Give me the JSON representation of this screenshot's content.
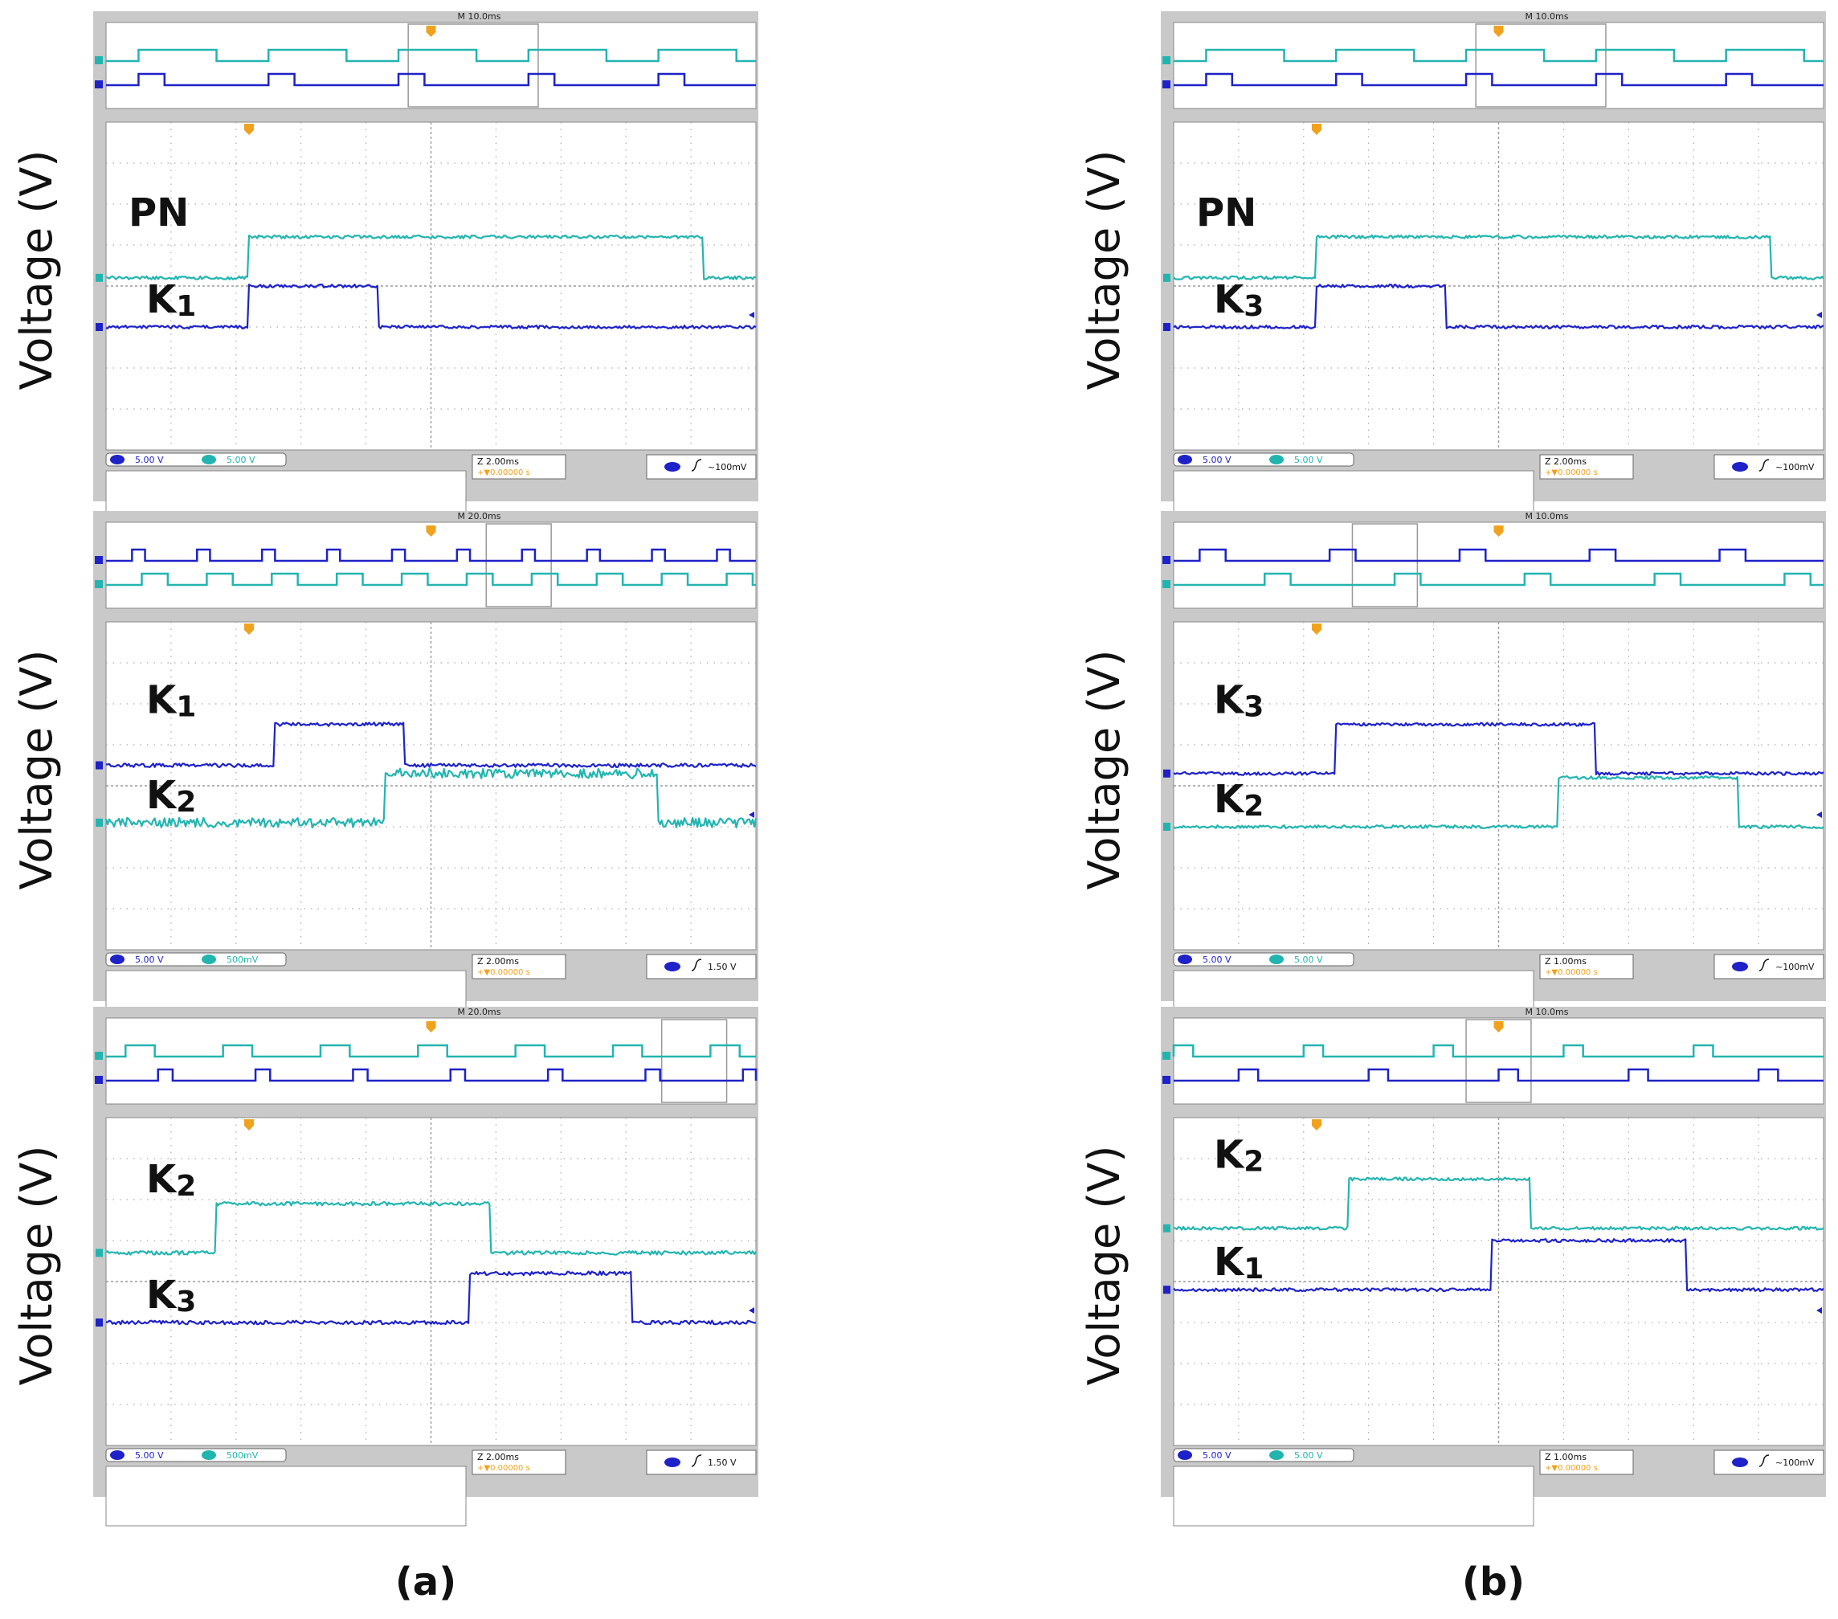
{
  "colors": {
    "ch1": "#1e22c8",
    "ch2": "#22b5b0",
    "trigger": "#f0a21e",
    "scope_bg": "#c9c9c9",
    "grid": "#9a9a9a"
  },
  "ylabel": "Voltage (V)",
  "panel_labels": [
    "(a)",
    "(b)"
  ],
  "chart_data": [
    {
      "type": "line",
      "column": "a",
      "row": 0,
      "overview": {
        "timebase": "M 10.0ms",
        "order": [
          "ch2",
          "ch1"
        ],
        "ch1_period_div": 2.0,
        "ch1_duty": 0.2,
        "ch1_phase": 0.5,
        "ch2_period_div": 2.0,
        "ch2_duty": 0.6,
        "ch2_phase": 0.5,
        "window": [
          4.65,
          6.65
        ]
      },
      "series": [
        {
          "name": "PN",
          "label_main": "PN",
          "label_sub": "",
          "channel": "ch2",
          "level_div": 4.2,
          "step_div": 1.0,
          "high_intervals": [
            [
              2.2,
              9.2
            ]
          ],
          "noise": 0.025
        },
        {
          "name": "K1",
          "label_main": "K",
          "label_sub": "1",
          "channel": "ch1",
          "level_div": 3.0,
          "step_div": 1.0,
          "high_intervals": [
            [
              2.2,
              4.2
            ]
          ],
          "noise": 0.025
        }
      ],
      "readouts": {
        "ch1": "5.00 V",
        "ch2": "5.00 V",
        "timescale": "2.00ms",
        "position": "+▼0.00000 s",
        "trigger": "~100mV"
      }
    },
    {
      "type": "line",
      "column": "a",
      "row": 1,
      "overview": {
        "timebase": "M 20.0ms",
        "order": [
          "ch1",
          "ch2"
        ],
        "ch1_period_div": 1.0,
        "ch1_duty": 0.2,
        "ch1_phase": 0.4,
        "ch2_period_div": 1.0,
        "ch2_duty": 0.4,
        "ch2_phase": 0.55,
        "window": [
          5.85,
          6.85
        ]
      },
      "series": [
        {
          "name": "K1",
          "label_main": "K",
          "label_sub": "1",
          "channel": "ch1",
          "level_div": 4.5,
          "step_div": 1.0,
          "high_intervals": [
            [
              2.6,
              4.6
            ]
          ],
          "noise": 0.03
        },
        {
          "name": "K2",
          "label_main": "K",
          "label_sub": "2",
          "channel": "ch2",
          "level_div": 3.1,
          "step_div": 1.2,
          "high_intervals": [
            [
              4.3,
              8.5
            ]
          ],
          "noise": 0.08
        }
      ],
      "readouts": {
        "ch1": "5.00 V",
        "ch2": "500mV",
        "timescale": "2.00ms",
        "position": "+▼0.00000 s",
        "trigger": "1.50 V"
      }
    },
    {
      "type": "line",
      "column": "a",
      "row": 2,
      "overview": {
        "timebase": "M 20.0ms",
        "order": [
          "ch2",
          "ch1"
        ],
        "ch1_period_div": 1.5,
        "ch1_duty": 0.15,
        "ch1_phase": 0.8,
        "ch2_period_div": 1.5,
        "ch2_duty": 0.3,
        "ch2_phase": 0.3,
        "window": [
          8.55,
          9.55
        ]
      },
      "series": [
        {
          "name": "K2",
          "label_main": "K",
          "label_sub": "2",
          "channel": "ch2",
          "level_div": 4.7,
          "step_div": 1.2,
          "high_intervals": [
            [
              1.7,
              5.9
            ]
          ],
          "noise": 0.03
        },
        {
          "name": "K3",
          "label_main": "K",
          "label_sub": "3",
          "channel": "ch1",
          "level_div": 3.0,
          "step_div": 1.2,
          "high_intervals": [
            [
              5.6,
              8.1
            ]
          ],
          "noise": 0.03
        }
      ],
      "readouts": {
        "ch1": "5.00 V",
        "ch2": "500mV",
        "timescale": "2.00ms",
        "position": "+▼0.00000 s",
        "trigger": "1.50 V"
      }
    },
    {
      "type": "line",
      "column": "b",
      "row": 0,
      "overview": {
        "timebase": "M 10.0ms",
        "order": [
          "ch2",
          "ch1"
        ],
        "ch1_period_div": 2.0,
        "ch1_duty": 0.2,
        "ch1_phase": 0.5,
        "ch2_period_div": 2.0,
        "ch2_duty": 0.6,
        "ch2_phase": 0.5,
        "window": [
          4.65,
          6.65
        ]
      },
      "series": [
        {
          "name": "PN",
          "label_main": "PN",
          "label_sub": "",
          "channel": "ch2",
          "level_div": 4.2,
          "step_div": 1.0,
          "high_intervals": [
            [
              2.2,
              9.2
            ]
          ],
          "noise": 0.025
        },
        {
          "name": "K3",
          "label_main": "K",
          "label_sub": "3",
          "channel": "ch1",
          "level_div": 3.0,
          "step_div": 1.0,
          "high_intervals": [
            [
              2.2,
              4.2
            ]
          ],
          "noise": 0.025
        }
      ],
      "readouts": {
        "ch1": "5.00 V",
        "ch2": "5.00 V",
        "timescale": "2.00ms",
        "position": "+▼0.00000 s",
        "trigger": "~100mV"
      }
    },
    {
      "type": "line",
      "column": "b",
      "row": 1,
      "overview": {
        "timebase": "M 10.0ms",
        "order": [
          "ch1",
          "ch2"
        ],
        "ch1_period_div": 2.0,
        "ch1_duty": 0.2,
        "ch1_phase": 0.4,
        "ch2_period_div": 2.0,
        "ch2_duty": 0.2,
        "ch2_phase": 1.4,
        "window": [
          2.75,
          3.75
        ]
      },
      "series": [
        {
          "name": "K3",
          "label_main": "K",
          "label_sub": "3",
          "channel": "ch1",
          "level_div": 4.3,
          "step_div": 1.2,
          "high_intervals": [
            [
              2.5,
              6.5
            ]
          ],
          "noise": 0.025
        },
        {
          "name": "K2",
          "label_main": "K",
          "label_sub": "2",
          "channel": "ch2",
          "level_div": 3.0,
          "step_div": 1.2,
          "high_intervals": [
            [
              5.9,
              8.7
            ]
          ],
          "noise": 0.025
        }
      ],
      "readouts": {
        "ch1": "5.00 V",
        "ch2": "5.00 V",
        "timescale": "1.00ms",
        "position": "+▼0.00000 s",
        "trigger": "~100mV"
      }
    },
    {
      "type": "line",
      "column": "b",
      "row": 2,
      "overview": {
        "timebase": "M 10.0ms",
        "order": [
          "ch2",
          "ch1"
        ],
        "ch1_period_div": 2.0,
        "ch1_duty": 0.15,
        "ch1_phase": 1.0,
        "ch2_period_div": 2.0,
        "ch2_duty": 0.15,
        "ch2_phase": 2.0,
        "window": [
          4.5,
          5.5
        ]
      },
      "series": [
        {
          "name": "K2",
          "label_main": "K",
          "label_sub": "2",
          "channel": "ch2",
          "level_div": 5.3,
          "step_div": 1.2,
          "high_intervals": [
            [
              2.7,
              5.5
            ]
          ],
          "noise": 0.025
        },
        {
          "name": "K1",
          "label_main": "K",
          "label_sub": "1",
          "channel": "ch1",
          "level_div": 3.8,
          "step_div": 1.2,
          "high_intervals": [
            [
              4.9,
              7.9
            ]
          ],
          "noise": 0.025
        }
      ],
      "readouts": {
        "ch1": "5.00 V",
        "ch2": "5.00 V",
        "timescale": "1.00ms",
        "position": "+▼0.00000 s",
        "trigger": "~100mV"
      }
    }
  ]
}
